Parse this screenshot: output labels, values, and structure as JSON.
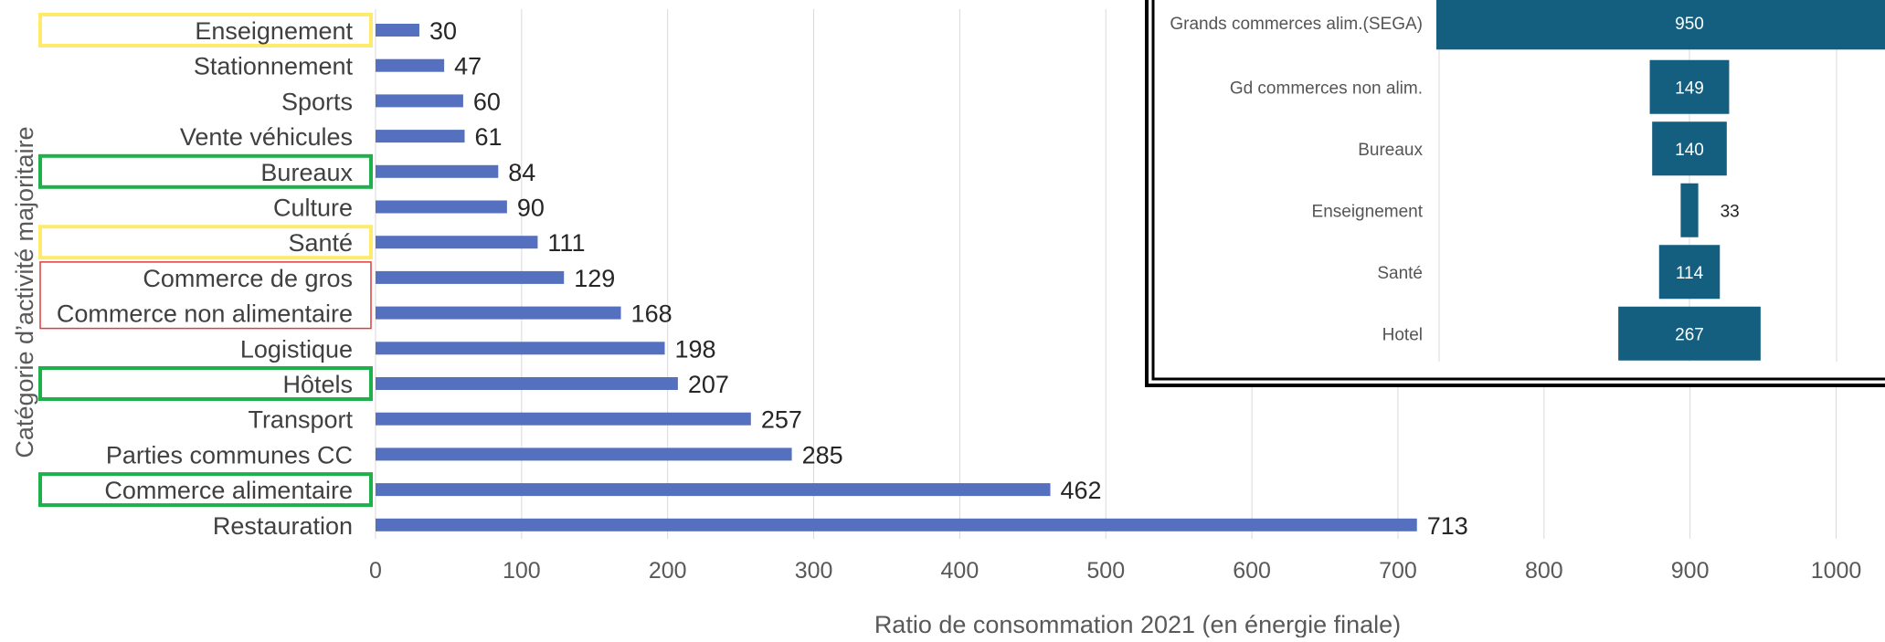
{
  "chart_data": [
    {
      "type": "bar",
      "orientation": "horizontal",
      "title": "",
      "xlabel": "Ratio de consommation 2021 (en énergie finale)",
      "ylabel": "Catégorie d’activité majoritaire",
      "xlim": [
        0,
        1000
      ],
      "xticks": [
        "0",
        "100",
        "200",
        "300",
        "400",
        "500",
        "600",
        "700",
        "800",
        "900",
        "1000"
      ],
      "grid": "vertical",
      "bar_color": "#5470BE",
      "categories": [
        "Enseignement",
        "Stationnement",
        "Sports",
        "Vente véhicules",
        "Bureaux",
        "Culture",
        "Santé",
        "Commerce de gros",
        "Commerce non alimentaire",
        "Logistique",
        "Hôtels",
        "Transport",
        "Parties communes CC",
        "Commerce alimentaire",
        "Restauration"
      ],
      "values": [
        30,
        47,
        60,
        61,
        84,
        90,
        111,
        129,
        168,
        198,
        207,
        257,
        285,
        462,
        713
      ],
      "highlights": [
        {
          "categories": [
            "Enseignement"
          ],
          "color": "#FFEB6B"
        },
        {
          "categories": [
            "Bureaux"
          ],
          "color": "#1DB04B"
        },
        {
          "categories": [
            "Santé"
          ],
          "color": "#FFEB6B"
        },
        {
          "categories": [
            "Commerce de gros",
            "Commerce non alimentaire"
          ],
          "color": "#E03C3C"
        },
        {
          "categories": [
            "Hôtels"
          ],
          "color": "#1DB04B"
        },
        {
          "categories": [
            "Commerce alimentaire"
          ],
          "color": "#1DB04B"
        }
      ]
    },
    {
      "type": "bar",
      "orientation": "horizontal-centered",
      "bar_color": "#145F80",
      "categories": [
        "Grands commerces alim.(SEGA)",
        "Gd commerces non alim.",
        "Bureaux",
        "Enseignement",
        "Santé",
        "Hotel"
      ],
      "values": [
        950,
        149,
        140,
        33,
        114,
        267
      ],
      "value_labels": [
        "950",
        "149",
        "140",
        "33",
        "114",
        "267"
      ],
      "scale_max": 950
    }
  ]
}
